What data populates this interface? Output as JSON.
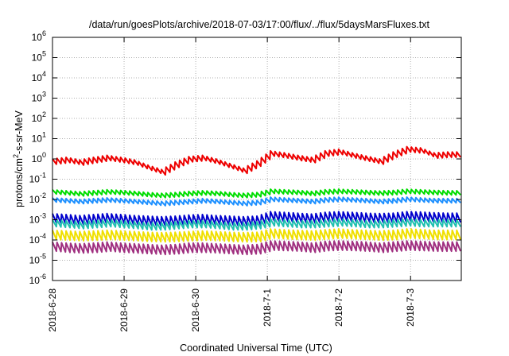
{
  "chart_data": {
    "type": "line",
    "title": "/data/run/goesPlots/archive/2018-07-03/17:00/flux/../flux/5daysMarsFluxes.txt",
    "xlabel": "Coordinated Universal Time (UTC)",
    "ylabel": "protons/cm²-s-sr-MeV",
    "yscale": "log",
    "ylim": [
      1e-06,
      1000000.0
    ],
    "xlim": [
      "2018-06-28 00:00",
      "2018-07-03 17:00"
    ],
    "xticks": [
      "2018-6-28",
      "2018-6-29",
      "2018-6-30",
      "2018-7-1",
      "2018-7-2",
      "2018-7-3"
    ],
    "yticks": [
      {
        "base": "10",
        "exp": "-6"
      },
      {
        "base": "10",
        "exp": "-5"
      },
      {
        "base": "10",
        "exp": "-4"
      },
      {
        "base": "10",
        "exp": "-3"
      },
      {
        "base": "10",
        "exp": "-2"
      },
      {
        "base": "10",
        "exp": "-1"
      },
      {
        "base": "10",
        "exp": "0"
      },
      {
        "base": "10",
        "exp": "1"
      },
      {
        "base": "10",
        "exp": "2"
      },
      {
        "base": "10",
        "exp": "3"
      },
      {
        "base": "10",
        "exp": "4"
      },
      {
        "base": "10",
        "exp": "5"
      },
      {
        "base": "10",
        "exp": "6"
      }
    ],
    "grid": true,
    "legend": "none",
    "series": [
      {
        "color": "#ee0000",
        "values": [
          1.0,
          1.2,
          0.9,
          1.2,
          1.5,
          1.2,
          0.9,
          0.5,
          0.3,
          0.7,
          1.3,
          1.5,
          1.0,
          0.6,
          0.35,
          0.8,
          2.5,
          2.0,
          1.5,
          1.2,
          2.5,
          3.0,
          2.0,
          1.4,
          1.0,
          2.2,
          4.0,
          3.5,
          2.0,
          2.2
        ]
      },
      {
        "color": "#00dd00",
        "values": [
          0.03,
          0.027,
          0.024,
          0.027,
          0.03,
          0.028,
          0.025,
          0.022,
          0.02,
          0.022,
          0.025,
          0.027,
          0.025,
          0.022,
          0.02,
          0.022,
          0.032,
          0.03,
          0.028,
          0.025,
          0.03,
          0.032,
          0.03,
          0.028,
          0.026,
          0.028,
          0.032,
          0.03,
          0.028,
          0.027
        ]
      },
      {
        "color": "#1e90ff",
        "values": [
          0.012,
          0.011,
          0.01,
          0.011,
          0.012,
          0.011,
          0.01,
          0.009,
          0.008,
          0.009,
          0.01,
          0.011,
          0.01,
          0.009,
          0.008,
          0.009,
          0.013,
          0.012,
          0.011,
          0.01,
          0.012,
          0.013,
          0.012,
          0.011,
          0.01,
          0.011,
          0.013,
          0.012,
          0.011,
          0.011
        ]
      },
      {
        "color": "#0000cc",
        "values": [
          0.002,
          0.0018,
          0.0016,
          0.0018,
          0.002,
          0.0018,
          0.0016,
          0.0015,
          0.0014,
          0.0015,
          0.0017,
          0.0018,
          0.0016,
          0.0015,
          0.0014,
          0.0015,
          0.0025,
          0.0023,
          0.0021,
          0.0019,
          0.0023,
          0.0025,
          0.0023,
          0.0021,
          0.002,
          0.0021,
          0.0025,
          0.0024,
          0.0022,
          0.0021
        ]
      },
      {
        "color": "#20c0b0",
        "values": [
          0.001,
          0.0009,
          0.0008,
          0.0009,
          0.001,
          0.0009,
          0.0008,
          0.0007,
          0.0007,
          0.0008,
          0.0009,
          0.0009,
          0.0008,
          0.0007,
          0.0007,
          0.0008,
          0.0011,
          0.001,
          0.0009,
          0.0009,
          0.001,
          0.0011,
          0.001,
          0.0009,
          0.0009,
          0.001,
          0.0011,
          0.001,
          0.001,
          0.001
        ]
      },
      {
        "color": "#f0e000",
        "values": [
          0.0003,
          0.00028,
          0.00026,
          0.00028,
          0.0003,
          0.00028,
          0.00026,
          0.00024,
          0.00023,
          0.00024,
          0.00026,
          0.00028,
          0.00026,
          0.00024,
          0.00023,
          0.00024,
          0.00035,
          0.00032,
          0.0003,
          0.00028,
          0.00032,
          0.00035,
          0.00032,
          0.0003,
          0.00028,
          0.0003,
          0.00035,
          0.00033,
          0.0003,
          0.0003
        ]
      },
      {
        "color": "#a03080",
        "values": [
          8e-05,
          7e-05,
          6.5e-05,
          7e-05,
          8e-05,
          7e-05,
          6.5e-05,
          6e-05,
          5.5e-05,
          6e-05,
          7e-05,
          7e-05,
          6.5e-05,
          6e-05,
          5.5e-05,
          6e-05,
          9e-05,
          8.5e-05,
          8e-05,
          7e-05,
          8.5e-05,
          9e-05,
          8.5e-05,
          8e-05,
          7e-05,
          8e-05,
          9e-05,
          8.5e-05,
          8e-05,
          8e-05
        ]
      }
    ]
  }
}
